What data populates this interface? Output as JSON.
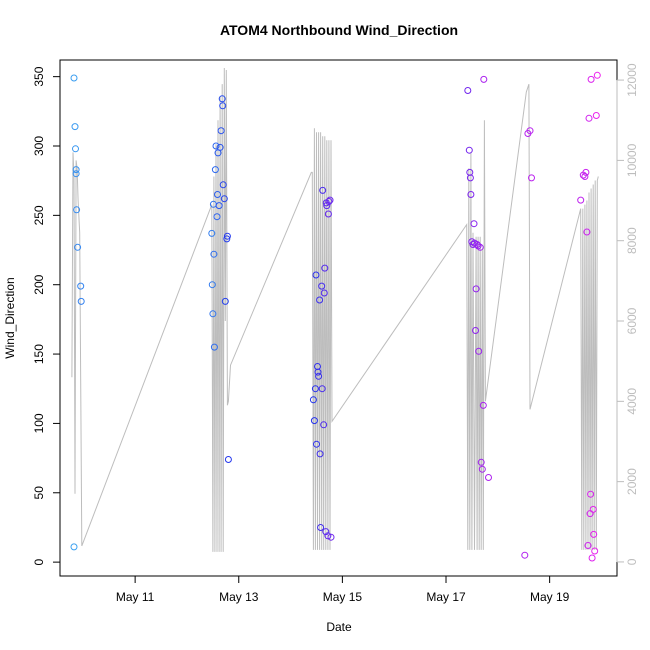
{
  "chart_data": {
    "type": "scatter",
    "title": "ATOM4 Northbound Wind_Direction",
    "xlabel": "Date",
    "ylabel": "Wind_Direction",
    "x_ticks": [
      {
        "label": "May 11",
        "day": 11
      },
      {
        "label": "May 13",
        "day": 13
      },
      {
        "label": "May 15",
        "day": 15
      },
      {
        "label": "May 17",
        "day": 17
      },
      {
        "label": "May 19",
        "day": 19
      }
    ],
    "xlim_day": [
      9.55,
      20.3
    ],
    "ylim": [
      -10,
      362
    ],
    "y_ticks": [
      0,
      50,
      100,
      150,
      200,
      250,
      300,
      350
    ],
    "y2_ticks": [
      0,
      2000,
      4000,
      6000,
      8000,
      10000,
      12000
    ],
    "y2lim": [
      -350,
      12500
    ],
    "colors": {
      "point_gradient": [
        "#3aa0f0",
        "#2233ee",
        "#8822ee",
        "#ee22ee"
      ],
      "secondary_line": "#bdbdbd",
      "secondary_axis": "#bdbdbd",
      "axis": "#000000"
    },
    "series": [
      {
        "points": [
          {
            "day": 9.82,
            "y": 11
          },
          {
            "day": 9.82,
            "y": 349
          },
          {
            "day": 9.84,
            "y": 314
          },
          {
            "day": 9.85,
            "y": 298
          },
          {
            "day": 9.86,
            "y": 283
          },
          {
            "day": 9.86,
            "y": 280
          },
          {
            "day": 9.87,
            "y": 254
          },
          {
            "day": 9.89,
            "y": 227
          },
          {
            "day": 9.95,
            "y": 199
          },
          {
            "day": 9.96,
            "y": 188
          },
          {
            "day": 12.48,
            "y": 237
          },
          {
            "day": 12.49,
            "y": 200
          },
          {
            "day": 12.5,
            "y": 179
          },
          {
            "day": 12.51,
            "y": 258
          },
          {
            "day": 12.52,
            "y": 222
          },
          {
            "day": 12.53,
            "y": 155
          },
          {
            "day": 12.55,
            "y": 283
          },
          {
            "day": 12.56,
            "y": 300
          },
          {
            "day": 12.58,
            "y": 249
          },
          {
            "day": 12.59,
            "y": 265
          },
          {
            "day": 12.6,
            "y": 295
          },
          {
            "day": 12.62,
            "y": 257
          },
          {
            "day": 12.64,
            "y": 299
          },
          {
            "day": 12.66,
            "y": 311
          },
          {
            "day": 12.68,
            "y": 334
          },
          {
            "day": 12.69,
            "y": 329
          },
          {
            "day": 12.7,
            "y": 272
          },
          {
            "day": 12.72,
            "y": 262
          },
          {
            "day": 12.74,
            "y": 188
          },
          {
            "day": 12.77,
            "y": 233
          },
          {
            "day": 12.78,
            "y": 235
          },
          {
            "day": 12.8,
            "y": 74
          },
          {
            "day": 14.44,
            "y": 117
          },
          {
            "day": 14.46,
            "y": 102
          },
          {
            "day": 14.48,
            "y": 125
          },
          {
            "day": 14.49,
            "y": 207
          },
          {
            "day": 14.5,
            "y": 85
          },
          {
            "day": 14.52,
            "y": 141
          },
          {
            "day": 14.53,
            "y": 137
          },
          {
            "day": 14.54,
            "y": 134
          },
          {
            "day": 14.56,
            "y": 189
          },
          {
            "day": 14.57,
            "y": 78
          },
          {
            "day": 14.58,
            "y": 25
          },
          {
            "day": 14.6,
            "y": 199
          },
          {
            "day": 14.61,
            "y": 125
          },
          {
            "day": 14.62,
            "y": 268
          },
          {
            "day": 14.64,
            "y": 99
          },
          {
            "day": 14.65,
            "y": 194
          },
          {
            "day": 14.66,
            "y": 212
          },
          {
            "day": 14.68,
            "y": 22
          },
          {
            "day": 14.69,
            "y": 259
          },
          {
            "day": 14.7,
            "y": 257
          },
          {
            "day": 14.72,
            "y": 19
          },
          {
            "day": 14.73,
            "y": 251
          },
          {
            "day": 14.74,
            "y": 260
          },
          {
            "day": 14.76,
            "y": 261
          },
          {
            "day": 14.78,
            "y": 18
          },
          {
            "day": 17.42,
            "y": 340
          },
          {
            "day": 17.45,
            "y": 297
          },
          {
            "day": 17.46,
            "y": 281
          },
          {
            "day": 17.47,
            "y": 277
          },
          {
            "day": 17.48,
            "y": 265
          },
          {
            "day": 17.5,
            "y": 231
          },
          {
            "day": 17.52,
            "y": 229
          },
          {
            "day": 17.54,
            "y": 244
          },
          {
            "day": 17.55,
            "y": 230
          },
          {
            "day": 17.57,
            "y": 167
          },
          {
            "day": 17.58,
            "y": 197
          },
          {
            "day": 17.6,
            "y": 229
          },
          {
            "day": 17.62,
            "y": 228
          },
          {
            "day": 17.63,
            "y": 152
          },
          {
            "day": 17.66,
            "y": 227
          },
          {
            "day": 17.68,
            "y": 72
          },
          {
            "day": 17.7,
            "y": 67
          },
          {
            "day": 17.72,
            "y": 113
          },
          {
            "day": 17.73,
            "y": 348
          },
          {
            "day": 17.82,
            "y": 61
          },
          {
            "day": 18.52,
            "y": 5
          },
          {
            "day": 18.58,
            "y": 309
          },
          {
            "day": 18.62,
            "y": 311
          },
          {
            "day": 18.65,
            "y": 277
          },
          {
            "day": 19.6,
            "y": 261
          },
          {
            "day": 19.65,
            "y": 279
          },
          {
            "day": 19.68,
            "y": 278
          },
          {
            "day": 19.7,
            "y": 281
          },
          {
            "day": 19.72,
            "y": 238
          },
          {
            "day": 19.74,
            "y": 12
          },
          {
            "day": 19.76,
            "y": 320
          },
          {
            "day": 19.78,
            "y": 35
          },
          {
            "day": 19.79,
            "y": 49
          },
          {
            "day": 19.8,
            "y": 348
          },
          {
            "day": 19.82,
            "y": 3
          },
          {
            "day": 19.84,
            "y": 38
          },
          {
            "day": 19.85,
            "y": 20
          },
          {
            "day": 19.87,
            "y": 8
          },
          {
            "day": 19.9,
            "y": 322
          },
          {
            "day": 19.92,
            "y": 351
          }
        ]
      }
    ],
    "secondary_series": {
      "points": [
        [
          9.78,
          4600
        ],
        [
          9.8,
          10200
        ],
        [
          9.82,
          9600
        ],
        [
          9.84,
          1700
        ],
        [
          9.86,
          10000
        ],
        [
          9.88,
          9800
        ],
        [
          9.9,
          9000
        ],
        [
          9.93,
          8200
        ],
        [
          9.97,
          400
        ],
        [
          12.45,
          8800
        ],
        [
          12.48,
          8900
        ],
        [
          12.5,
          250
        ],
        [
          12.52,
          9600
        ],
        [
          12.54,
          250
        ],
        [
          12.56,
          10400
        ],
        [
          12.58,
          250
        ],
        [
          12.6,
          11000
        ],
        [
          12.62,
          250
        ],
        [
          12.64,
          11600
        ],
        [
          12.66,
          250
        ],
        [
          12.68,
          11900
        ],
        [
          12.7,
          250
        ],
        [
          12.72,
          12300
        ],
        [
          12.74,
          6000
        ],
        [
          12.76,
          12250
        ],
        [
          12.78,
          3900
        ],
        [
          12.8,
          4000
        ],
        [
          12.84,
          4900
        ],
        [
          14.4,
          9700
        ],
        [
          14.42,
          9700
        ],
        [
          14.44,
          300
        ],
        [
          14.46,
          10800
        ],
        [
          14.48,
          300
        ],
        [
          14.5,
          10700
        ],
        [
          14.52,
          300
        ],
        [
          14.54,
          10700
        ],
        [
          14.56,
          300
        ],
        [
          14.58,
          10700
        ],
        [
          14.6,
          300
        ],
        [
          14.62,
          10600
        ],
        [
          14.64,
          300
        ],
        [
          14.66,
          10600
        ],
        [
          14.68,
          300
        ],
        [
          14.7,
          10500
        ],
        [
          14.72,
          300
        ],
        [
          14.74,
          10500
        ],
        [
          14.76,
          300
        ],
        [
          14.78,
          10500
        ],
        [
          14.8,
          3500
        ],
        [
          17.4,
          8400
        ],
        [
          17.42,
          300
        ],
        [
          17.44,
          9800
        ],
        [
          17.46,
          300
        ],
        [
          17.48,
          10200
        ],
        [
          17.5,
          300
        ],
        [
          17.52,
          8200
        ],
        [
          17.55,
          300
        ],
        [
          17.58,
          8100
        ],
        [
          17.6,
          300
        ],
        [
          17.62,
          8100
        ],
        [
          17.64,
          300
        ],
        [
          17.66,
          8100
        ],
        [
          17.68,
          300
        ],
        [
          17.7,
          7800
        ],
        [
          17.72,
          300
        ],
        [
          17.74,
          11000
        ],
        [
          17.76,
          4000
        ],
        [
          18.55,
          11700
        ],
        [
          18.6,
          11900
        ],
        [
          18.62,
          3800
        ],
        [
          19.6,
          8800
        ],
        [
          19.62,
          300
        ],
        [
          19.64,
          8800
        ],
        [
          19.66,
          300
        ],
        [
          19.68,
          8900
        ],
        [
          19.7,
          300
        ],
        [
          19.72,
          9000
        ],
        [
          19.74,
          300
        ],
        [
          19.76,
          9200
        ],
        [
          19.78,
          300
        ],
        [
          19.8,
          9300
        ],
        [
          19.82,
          300
        ],
        [
          19.84,
          9400
        ],
        [
          19.86,
          300
        ],
        [
          19.88,
          9500
        ],
        [
          19.9,
          300
        ],
        [
          19.92,
          9500
        ],
        [
          19.94,
          9600
        ]
      ]
    }
  }
}
